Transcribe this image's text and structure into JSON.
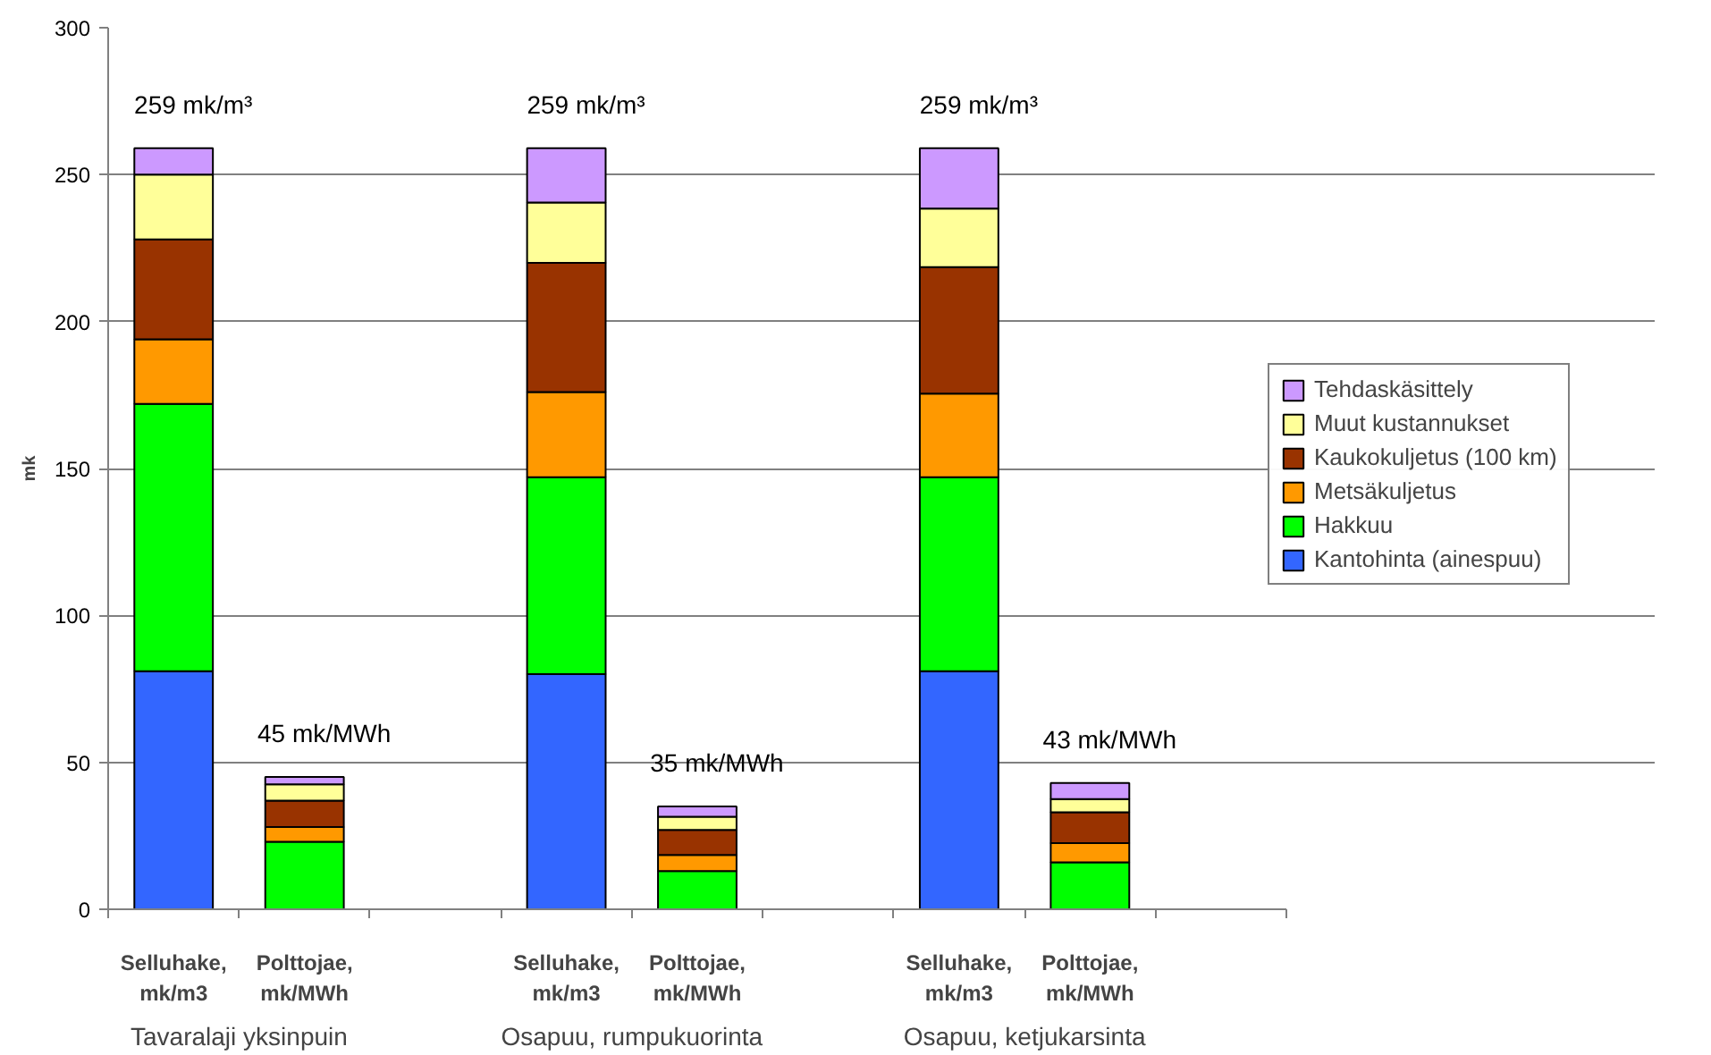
{
  "chart_data": {
    "type": "bar",
    "stacked": true,
    "ylabel": "mk",
    "categories": [
      "Selluhake, mk/m3",
      "Polttojae, mk/MWh",
      null,
      "Selluhake, mk/m3",
      "Polttojae, mk/MWh",
      null,
      "Selluhake, mk/m3",
      "Polttojae, mk/MWh",
      null
    ],
    "series": [
      {
        "name": "Kantohinta (ainespuu)",
        "color": "#3366ff",
        "values": [
          81,
          0,
          null,
          80,
          0,
          null,
          81,
          0,
          null
        ]
      },
      {
        "name": "Hakkuu",
        "color": "#00ff00",
        "values": [
          91,
          23,
          null,
          67,
          13,
          null,
          66,
          16,
          null
        ]
      },
      {
        "name": "Metsäkuljetus",
        "color": "#ff9900",
        "values": [
          22,
          5,
          null,
          29,
          5.5,
          null,
          28.5,
          6.5,
          null
        ]
      },
      {
        "name": "Kaukokuljetus (100 km)",
        "color": "#993300",
        "values": [
          34,
          9,
          null,
          44,
          8.5,
          null,
          43,
          10.5,
          null
        ]
      },
      {
        "name": "Muut kustannukset",
        "color": "#ffff99",
        "values": [
          22,
          5.5,
          null,
          20.5,
          4.5,
          null,
          20,
          4.5,
          null
        ]
      },
      {
        "name": "Tehdaskäsittely",
        "color": "#cc99ff",
        "values": [
          9,
          2.5,
          null,
          18.5,
          3.5,
          null,
          20.5,
          5.5,
          null
        ]
      }
    ],
    "totals": [
      "259 mk/m³",
      "45 mk/MWh",
      null,
      "259 mk/m³",
      "35 mk/MWh",
      null,
      "259 mk/m³",
      "43 mk/MWh",
      null
    ],
    "annotations": [
      "Tavaralaji yksinpuin",
      "Osapuu, rumpukuorinta",
      "Osapuu, ketjukarsinta"
    ],
    "ylim": [
      0,
      300
    ],
    "yticks": [
      0,
      50,
      100,
      150,
      200,
      250,
      300
    ],
    "grid": "y",
    "legend": "right"
  }
}
